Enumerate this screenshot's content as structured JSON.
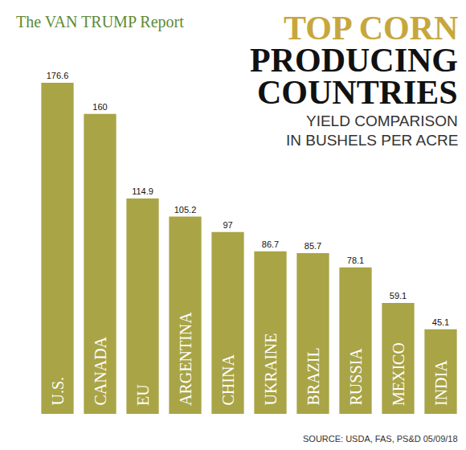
{
  "chart_data": {
    "type": "bar",
    "title": "TOP CORN PRODUCING COUNTRIES",
    "subtitle": "YIELD COMPARISON IN BUSHELS PER ACRE",
    "annotations": [
      "The VAN TRUMP Report",
      "SOURCE: USDA, FAS, PS&D 05/09/18"
    ],
    "categories": [
      "U.S.",
      "CANADA",
      "EU",
      "ARGENTINA",
      "CHINA",
      "UKRAINE",
      "BRAZIL",
      "RUSSIA",
      "MEXICO",
      "INDIA"
    ],
    "values": [
      176.6,
      160,
      114.9,
      105.2,
      97,
      86.7,
      85.7,
      78.1,
      59.1,
      45.1
    ],
    "color": "#a9a446",
    "ylim": [
      0,
      180
    ],
    "grid": false,
    "data_labels": true,
    "tick_labels": false
  }
}
